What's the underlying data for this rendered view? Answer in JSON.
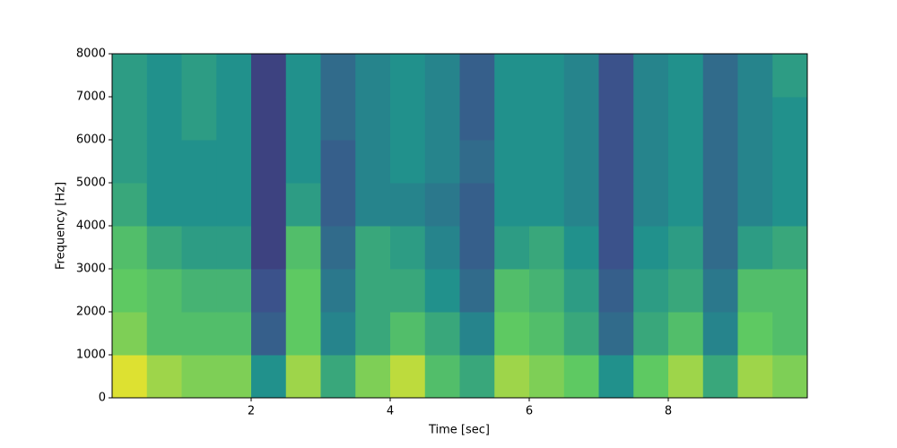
{
  "chart_data": {
    "type": "spectrogram",
    "xlabel": "Time [sec]",
    "ylabel": "Frequency [Hz]",
    "xlim": [
      0,
      10
    ],
    "ylim": [
      0,
      8000
    ],
    "xticks": [
      2,
      4,
      6,
      8
    ],
    "yticks": [
      0,
      1000,
      2000,
      3000,
      4000,
      5000,
      6000,
      7000,
      8000
    ],
    "xbins": [
      0,
      0.5,
      1,
      1.5,
      2,
      2.5,
      3,
      3.5,
      4,
      4.5,
      5,
      5.5,
      6,
      6.5,
      7,
      7.5,
      8,
      8.5,
      9,
      9.5,
      10
    ],
    "ybins": [
      0,
      1000,
      2000,
      3000,
      4000,
      5000,
      6000,
      7000,
      8000
    ],
    "colormap": [
      "#440154",
      "#3b528b",
      "#21918c",
      "#5ec962",
      "#fde725"
    ],
    "values": [
      [
        0.95,
        0.8,
        0.75,
        0.7,
        0.6,
        0.55,
        0.55,
        0.55
      ],
      [
        0.85,
        0.7,
        0.7,
        0.6,
        0.5,
        0.5,
        0.5,
        0.5
      ],
      [
        0.8,
        0.7,
        0.65,
        0.55,
        0.5,
        0.5,
        0.55,
        0.55
      ],
      [
        0.8,
        0.7,
        0.65,
        0.55,
        0.5,
        0.5,
        0.5,
        0.5
      ],
      [
        0.5,
        0.3,
        0.25,
        0.2,
        0.2,
        0.2,
        0.2,
        0.2
      ],
      [
        0.85,
        0.75,
        0.75,
        0.7,
        0.55,
        0.5,
        0.5,
        0.5
      ],
      [
        0.6,
        0.45,
        0.4,
        0.35,
        0.3,
        0.3,
        0.35,
        0.35
      ],
      [
        0.8,
        0.6,
        0.6,
        0.6,
        0.45,
        0.45,
        0.45,
        0.45
      ],
      [
        0.9,
        0.7,
        0.6,
        0.55,
        0.45,
        0.5,
        0.5,
        0.5
      ],
      [
        0.7,
        0.6,
        0.5,
        0.45,
        0.4,
        0.45,
        0.45,
        0.45
      ],
      [
        0.6,
        0.45,
        0.35,
        0.3,
        0.3,
        0.35,
        0.3,
        0.3
      ],
      [
        0.85,
        0.75,
        0.7,
        0.55,
        0.5,
        0.5,
        0.5,
        0.5
      ],
      [
        0.8,
        0.7,
        0.65,
        0.6,
        0.5,
        0.5,
        0.5,
        0.5
      ],
      [
        0.75,
        0.6,
        0.55,
        0.5,
        0.45,
        0.45,
        0.45,
        0.45
      ],
      [
        0.5,
        0.35,
        0.3,
        0.25,
        0.25,
        0.25,
        0.25,
        0.25
      ],
      [
        0.75,
        0.6,
        0.55,
        0.5,
        0.45,
        0.45,
        0.45,
        0.45
      ],
      [
        0.85,
        0.7,
        0.6,
        0.55,
        0.5,
        0.5,
        0.5,
        0.5
      ],
      [
        0.6,
        0.45,
        0.4,
        0.35,
        0.35,
        0.35,
        0.35,
        0.35
      ],
      [
        0.85,
        0.75,
        0.7,
        0.55,
        0.45,
        0.45,
        0.45,
        0.45
      ],
      [
        0.8,
        0.7,
        0.7,
        0.6,
        0.5,
        0.5,
        0.5,
        0.55
      ]
    ]
  }
}
